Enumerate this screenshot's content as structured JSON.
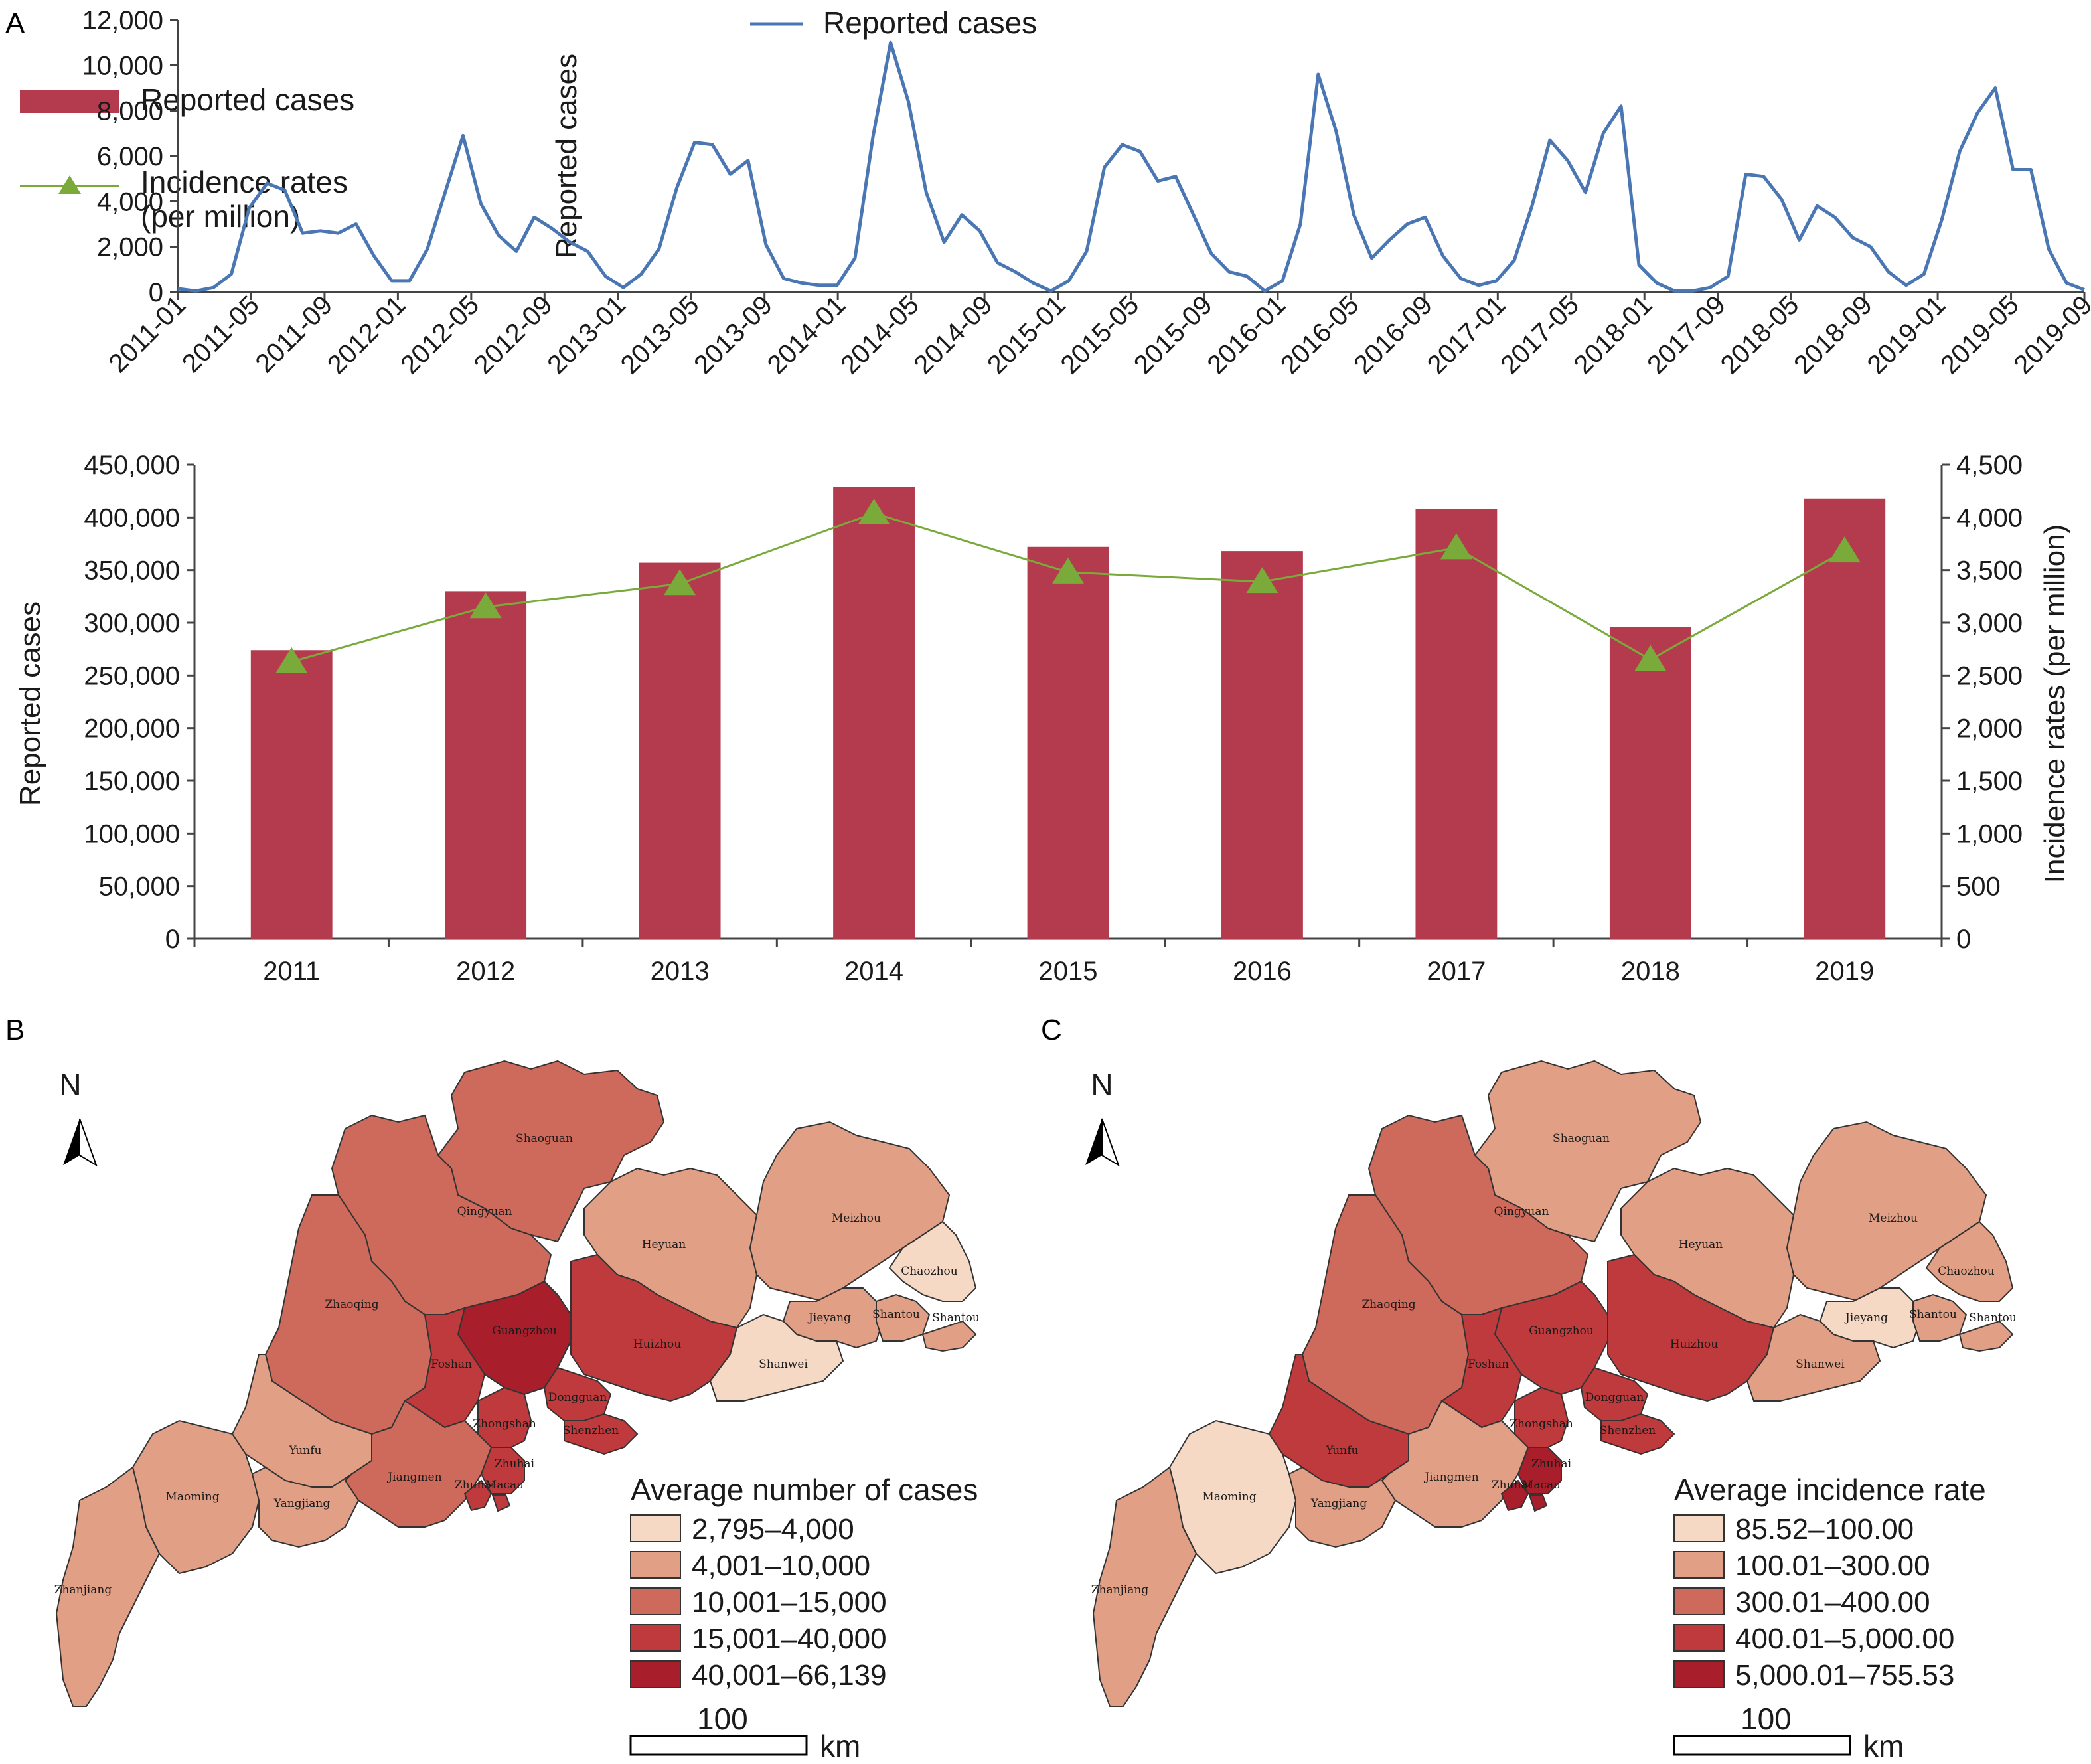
{
  "panels": {
    "a_label": "A",
    "b_label": "B",
    "c_label": "C"
  },
  "colors": {
    "bar": "#b43a4e",
    "incidence_line": "#7aaa3a",
    "monthly_line": "#4a76b4",
    "map_outline": "#333333",
    "map_class_1": "#f6d9c5",
    "map_class_2": "#e1a086",
    "map_class_3": "#cd6a5b",
    "map_class_4": "#bf3a3c",
    "map_class_5": "#a81e2a"
  },
  "legend_a": {
    "bar_label": "Reported cases",
    "line_label_1": "Incidence rates",
    "line_label_2": "(per million)"
  },
  "chart_data": [
    {
      "type": "line",
      "title": "",
      "ylabel": "Reported cases",
      "xlabel": "",
      "legend": "top-left",
      "grid": false,
      "ylim": [
        0,
        12000
      ],
      "y_ticks": [
        "0",
        "2,000",
        "4,000",
        "6,000",
        "8,000",
        "10,000",
        "12,000"
      ],
      "x_tick_labels": [
        "2011-01",
        "2011-05",
        "2011-09",
        "2012-01",
        "2012-05",
        "2012-09",
        "2013-01",
        "2013-05",
        "2013-09",
        "2014-01",
        "2014-05",
        "2014-09",
        "2015-01",
        "2015-05",
        "2015-09",
        "2016-01",
        "2016-05",
        "2016-09",
        "2017-01",
        "2017-05",
        "2018-01",
        "2017-09",
        "2018-05",
        "2018-09",
        "2019-01",
        "2019-05",
        "2019-09"
      ],
      "series": [
        {
          "name": "Reported cases",
          "values": [
            150,
            50,
            200,
            800,
            3700,
            4800,
            4500,
            2600,
            2700,
            2600,
            3000,
            1600,
            500,
            500,
            1900,
            4400,
            6900,
            3900,
            2500,
            1800,
            3300,
            2800,
            2200,
            1800,
            700,
            200,
            800,
            1900,
            4600,
            6600,
            6500,
            5200,
            5800,
            2100,
            600,
            400,
            300,
            300,
            1500,
            6800,
            11000,
            8400,
            4400,
            2200,
            3400,
            2700,
            1300,
            900,
            400,
            50,
            500,
            1800,
            5500,
            6500,
            6200,
            4900,
            5100,
            3400,
            1700,
            900,
            700,
            50,
            500,
            3000,
            9600,
            7100,
            3400,
            1500,
            2300,
            3000,
            3300,
            1600,
            600,
            300,
            500,
            1400,
            3800,
            6700,
            5800,
            4400,
            7000,
            8200,
            1200,
            400,
            50,
            50,
            200,
            700,
            5200,
            5100,
            4100,
            2300,
            3800,
            3300,
            2400,
            2000,
            900,
            300,
            800,
            3200,
            6200,
            7900,
            9000,
            5400,
            5400,
            1900,
            400,
            100
          ]
        }
      ]
    },
    {
      "type": "bar",
      "title": "",
      "xlabel": "",
      "ylabel": "Reported cases",
      "y2label": "Incidence rates (per million)",
      "legend": "top-left",
      "grid": false,
      "categories": [
        "2011",
        "2012",
        "2013",
        "2014",
        "2015",
        "2016",
        "2017",
        "2018",
        "2019"
      ],
      "ylim": [
        0,
        450000
      ],
      "y2lim": [
        0,
        4500
      ],
      "y_ticks": [
        "0",
        "50,000",
        "100,000",
        "150,000",
        "200,000",
        "250,000",
        "300,000",
        "350,000",
        "400,000",
        "450,000"
      ],
      "y2_ticks": [
        "0",
        "500",
        "1,000",
        "1,500",
        "2,000",
        "2,500",
        "3,000",
        "3,500",
        "4,000",
        "4,500"
      ],
      "series": [
        {
          "name": "Reported cases",
          "type": "bar",
          "axis": "left",
          "values": [
            274000,
            330000,
            357000,
            429000,
            372000,
            368000,
            408000,
            296000,
            418000
          ]
        },
        {
          "name": "Incidence rates (per million)",
          "type": "line",
          "axis": "right",
          "values": [
            2630,
            3150,
            3370,
            4040,
            3480,
            3390,
            3710,
            2650,
            3680
          ]
        }
      ]
    }
  ],
  "maps": {
    "north_label": "N",
    "scale_value": "100",
    "scale_unit": "km",
    "region_names": [
      "Shaoguan",
      "Qingyuan",
      "Heyuan",
      "Meizhou",
      "Chaozhou",
      "Zhaoqing",
      "Guangzhou",
      "Huizhou",
      "Jieyang",
      "Shantou",
      "Shanwei",
      "Foshan",
      "Dongguan",
      "Yunfu",
      "Shenzhen",
      "Zhongshan",
      "Zhuhai",
      "Jiangmen",
      "Zhuhai",
      "Macau",
      "Maoming",
      "Yangjiang",
      "Zhanjiang",
      "Shantou"
    ],
    "b_classes": [
      3,
      3,
      2,
      2,
      1,
      3,
      5,
      4,
      2,
      2,
      1,
      4,
      4,
      2,
      4,
      4,
      4,
      3,
      4,
      4,
      2,
      2,
      2,
      2
    ],
    "c_classes": [
      2,
      3,
      2,
      2,
      2,
      3,
      4,
      4,
      1,
      2,
      2,
      4,
      4,
      4,
      4,
      4,
      5,
      2,
      5,
      5,
      1,
      2,
      2,
      2
    ],
    "b_legend": {
      "title": "Average number of cases",
      "items": [
        "2,795–4,000",
        "4,001–10,000",
        "10,001–15,000",
        "15,001–40,000",
        "40,001–66,139"
      ]
    },
    "c_legend": {
      "title": "Average incidence rate",
      "items": [
        "85.52–100.00",
        "100.01–300.00",
        "300.01–400.00",
        "400.01–5,000.00",
        "5,000.01–755.53"
      ]
    }
  }
}
